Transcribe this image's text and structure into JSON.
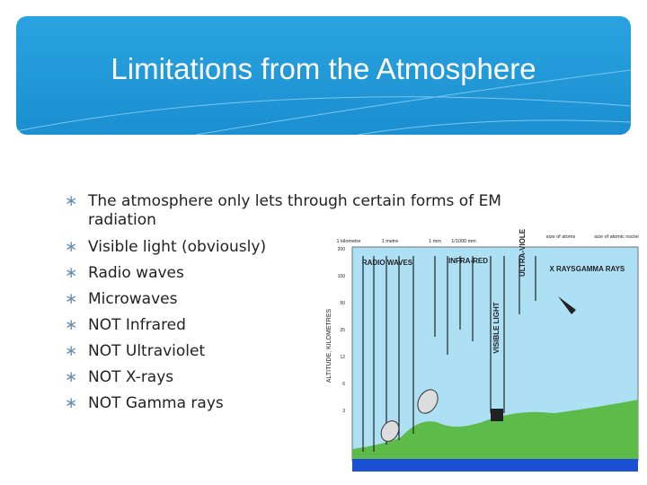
{
  "title": "Limitations from the Atmosphere",
  "bullets": [
    "The atmosphere only lets through certain forms of EM radiation",
    "Visible light (obviously)",
    "Radio waves",
    "Microwaves",
    "NOT Infrared",
    "NOT Ultraviolet",
    "NOT X-rays",
    "NOT Gamma rays"
  ],
  "diagram": {
    "scale_labels": [
      "1 kilometre",
      "1 metre",
      "1 mm",
      "1/1000 mm",
      "size of atoms",
      "size of atomic nuclei"
    ],
    "bands": [
      "RADIO WAVES",
      "INFRA-RED",
      "ULTRA-VIOLET",
      "X RAYS",
      "GAMMA RAYS"
    ],
    "visible": "VISIBLE LIGHT",
    "axis_label": "ALTITUDE, KILOMETRES",
    "altitudes": [
      "200",
      "100",
      "50",
      "25",
      "12",
      "6",
      "3"
    ]
  }
}
